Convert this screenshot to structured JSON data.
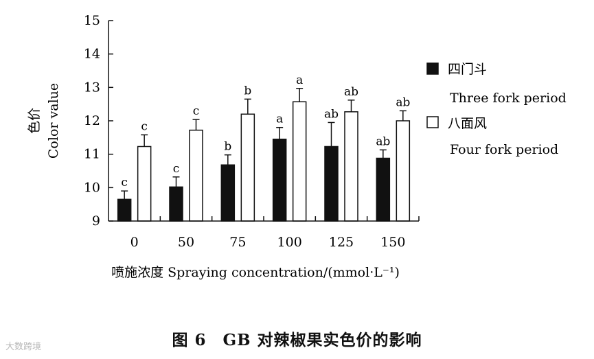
{
  "chart_data": {
    "type": "bar",
    "categories": [
      "0",
      "50",
      "75",
      "100",
      "125",
      "150"
    ],
    "series": [
      {
        "name": "四门斗",
        "name_en": "Three fork period",
        "color": "#111111",
        "values": [
          9.65,
          10.02,
          10.68,
          11.45,
          11.23,
          10.88
        ],
        "errors": [
          0.25,
          0.3,
          0.3,
          0.35,
          0.72,
          0.25
        ],
        "labels": [
          "c",
          "c",
          "b",
          "a",
          "ab",
          "ab"
        ]
      },
      {
        "name": "八面风",
        "name_en": "Four fork period",
        "color": "#ffffff",
        "values": [
          11.23,
          11.72,
          12.2,
          12.57,
          12.27,
          12.0
        ],
        "errors": [
          0.35,
          0.32,
          0.45,
          0.4,
          0.35,
          0.3
        ],
        "labels": [
          "c",
          "c",
          "b",
          "a",
          "ab",
          "ab"
        ]
      }
    ],
    "ylim": [
      9,
      15
    ],
    "yticks": [
      "9",
      "10",
      "11",
      "12",
      "13",
      "14",
      "15"
    ],
    "ylabel_cn": "色价",
    "ylabel_en": "Color value",
    "xlabel": "喷施浓度 Spraying concentration/(mmol·L⁻¹)",
    "legend_position": "right",
    "grid": false
  },
  "caption": "图 6　GB 对辣椒果实色价的影响",
  "watermark": "大数跨境"
}
